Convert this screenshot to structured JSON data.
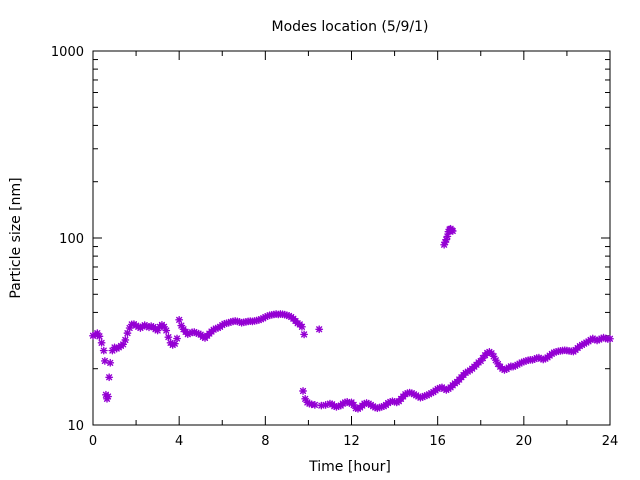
{
  "chart_data": {
    "type": "scatter",
    "title": "Modes location (5/9/1)",
    "xlabel": "Time [hour]",
    "ylabel": "Particle size [nm]",
    "xlim": [
      0,
      24
    ],
    "ylim": [
      10,
      1000
    ],
    "yscale": "log",
    "grid": false,
    "x_ticks": [
      "0",
      "4",
      "8",
      "12",
      "16",
      "20",
      "24"
    ],
    "y_ticks": [
      "10",
      "100",
      "1000"
    ],
    "marker_color": "#9400d3",
    "marker": "asterisk",
    "points": [
      [
        0.0,
        30.0
      ],
      [
        0.1,
        30.3
      ],
      [
        0.2,
        31.0
      ],
      [
        0.3,
        29.8
      ],
      [
        0.4,
        27.5
      ],
      [
        0.5,
        25.0
      ],
      [
        0.55,
        22.0
      ],
      [
        0.6,
        14.5
      ],
      [
        0.65,
        13.8
      ],
      [
        0.7,
        14.2
      ],
      [
        0.75,
        18.0
      ],
      [
        0.8,
        21.5
      ],
      [
        0.9,
        25.0
      ],
      [
        1.0,
        26.0
      ],
      [
        1.1,
        25.6
      ],
      [
        1.2,
        26.0
      ],
      [
        1.3,
        26.5
      ],
      [
        1.4,
        27.0
      ],
      [
        1.5,
        28.5
      ],
      [
        1.6,
        31.0
      ],
      [
        1.7,
        33.0
      ],
      [
        1.8,
        34.5
      ],
      [
        1.9,
        34.6
      ],
      [
        2.0,
        34.0
      ],
      [
        2.1,
        33.5
      ],
      [
        2.2,
        33.0
      ],
      [
        2.3,
        33.6
      ],
      [
        2.4,
        34.2
      ],
      [
        2.5,
        33.8
      ],
      [
        2.6,
        33.3
      ],
      [
        2.7,
        33.8
      ],
      [
        2.8,
        33.4
      ],
      [
        2.9,
        32.5
      ],
      [
        3.0,
        32.0
      ],
      [
        3.1,
        33.5
      ],
      [
        3.2,
        34.3
      ],
      [
        3.3,
        33.5
      ],
      [
        3.4,
        32.0
      ],
      [
        3.5,
        29.5
      ],
      [
        3.6,
        27.5
      ],
      [
        3.7,
        26.8
      ],
      [
        3.8,
        27.2
      ],
      [
        3.9,
        29.0
      ],
      [
        4.0,
        36.5
      ],
      [
        4.1,
        34.0
      ],
      [
        4.2,
        32.5
      ],
      [
        4.3,
        31.5
      ],
      [
        4.4,
        30.6
      ],
      [
        4.5,
        31.0
      ],
      [
        4.6,
        31.3
      ],
      [
        4.7,
        31.4
      ],
      [
        4.8,
        31.0
      ],
      [
        4.9,
        30.8
      ],
      [
        5.0,
        30.4
      ],
      [
        5.1,
        29.6
      ],
      [
        5.2,
        29.2
      ],
      [
        5.3,
        30.0
      ],
      [
        5.4,
        30.8
      ],
      [
        5.5,
        31.6
      ],
      [
        5.6,
        32.3
      ],
      [
        5.7,
        32.8
      ],
      [
        5.8,
        33.0
      ],
      [
        5.9,
        33.5
      ],
      [
        6.0,
        34.2
      ],
      [
        6.1,
        34.8
      ],
      [
        6.2,
        35.0
      ],
      [
        6.3,
        35.2
      ],
      [
        6.4,
        35.6
      ],
      [
        6.5,
        35.8
      ],
      [
        6.6,
        36.0
      ],
      [
        6.7,
        35.8
      ],
      [
        6.8,
        35.6
      ],
      [
        6.9,
        35.2
      ],
      [
        7.0,
        35.4
      ],
      [
        7.1,
        35.6
      ],
      [
        7.2,
        35.8
      ],
      [
        7.3,
        35.9
      ],
      [
        7.4,
        35.8
      ],
      [
        7.5,
        36.0
      ],
      [
        7.6,
        36.2
      ],
      [
        7.7,
        36.4
      ],
      [
        7.8,
        36.8
      ],
      [
        7.9,
        37.2
      ],
      [
        8.0,
        37.8
      ],
      [
        8.1,
        38.2
      ],
      [
        8.2,
        38.6
      ],
      [
        8.3,
        38.8
      ],
      [
        8.4,
        39.0
      ],
      [
        8.5,
        39.2
      ],
      [
        8.6,
        39.0
      ],
      [
        8.7,
        39.2
      ],
      [
        8.8,
        39.1
      ],
      [
        8.9,
        38.9
      ],
      [
        9.0,
        38.6
      ],
      [
        9.1,
        38.3
      ],
      [
        9.2,
        37.8
      ],
      [
        9.3,
        37.0
      ],
      [
        9.4,
        36.0
      ],
      [
        9.5,
        35.0
      ],
      [
        9.6,
        34.5
      ],
      [
        9.7,
        33.5
      ],
      [
        9.8,
        30.5
      ],
      [
        9.75,
        15.2
      ],
      [
        9.85,
        13.8
      ],
      [
        9.95,
        13.2
      ],
      [
        10.05,
        13.0
      ],
      [
        10.15,
        12.9
      ],
      [
        10.3,
        12.8
      ],
      [
        10.5,
        32.5
      ],
      [
        10.6,
        12.7
      ],
      [
        10.8,
        12.8
      ],
      [
        11.0,
        13.0
      ],
      [
        11.1,
        12.9
      ],
      [
        11.2,
        12.6
      ],
      [
        11.3,
        12.5
      ],
      [
        11.4,
        12.6
      ],
      [
        11.5,
        12.7
      ],
      [
        11.6,
        13.0
      ],
      [
        11.7,
        13.2
      ],
      [
        11.8,
        13.3
      ],
      [
        11.9,
        13.1
      ],
      [
        12.0,
        13.2
      ],
      [
        12.1,
        12.8
      ],
      [
        12.2,
        12.3
      ],
      [
        12.3,
        12.2
      ],
      [
        12.4,
        12.4
      ],
      [
        12.5,
        12.7
      ],
      [
        12.6,
        13.0
      ],
      [
        12.7,
        13.1
      ],
      [
        12.8,
        13.0
      ],
      [
        12.9,
        12.8
      ],
      [
        13.0,
        12.6
      ],
      [
        13.1,
        12.4
      ],
      [
        13.2,
        12.3
      ],
      [
        13.3,
        12.4
      ],
      [
        13.4,
        12.5
      ],
      [
        13.5,
        12.6
      ],
      [
        13.6,
        12.8
      ],
      [
        13.7,
        13.1
      ],
      [
        13.8,
        13.3
      ],
      [
        13.9,
        13.4
      ],
      [
        14.0,
        13.3
      ],
      [
        14.1,
        13.2
      ],
      [
        14.2,
        13.4
      ],
      [
        14.3,
        13.8
      ],
      [
        14.4,
        14.2
      ],
      [
        14.5,
        14.6
      ],
      [
        14.6,
        14.8
      ],
      [
        14.7,
        14.9
      ],
      [
        14.8,
        14.8
      ],
      [
        14.9,
        14.6
      ],
      [
        15.0,
        14.4
      ],
      [
        15.1,
        14.2
      ],
      [
        15.2,
        14.0
      ],
      [
        15.3,
        14.1
      ],
      [
        15.4,
        14.3
      ],
      [
        15.5,
        14.4
      ],
      [
        15.6,
        14.6
      ],
      [
        15.7,
        14.8
      ],
      [
        15.8,
        15.0
      ],
      [
        15.9,
        15.3
      ],
      [
        16.0,
        15.6
      ],
      [
        16.1,
        15.8
      ],
      [
        16.2,
        15.9
      ],
      [
        16.3,
        15.6
      ],
      [
        16.4,
        15.4
      ],
      [
        16.5,
        15.6
      ],
      [
        16.6,
        15.9
      ],
      [
        16.7,
        16.3
      ],
      [
        16.8,
        16.7
      ],
      [
        16.9,
        17.0
      ],
      [
        17.0,
        17.5
      ],
      [
        17.1,
        18.0
      ],
      [
        17.2,
        18.5
      ],
      [
        17.3,
        19.0
      ],
      [
        17.4,
        19.3
      ],
      [
        17.5,
        19.6
      ],
      [
        17.6,
        20.0
      ],
      [
        17.7,
        20.5
      ],
      [
        17.8,
        21.0
      ],
      [
        17.9,
        21.6
      ],
      [
        18.0,
        22.0
      ],
      [
        18.1,
        22.8
      ],
      [
        18.2,
        23.6
      ],
      [
        18.3,
        24.3
      ],
      [
        18.4,
        24.6
      ],
      [
        18.5,
        24.2
      ],
      [
        18.6,
        23.3
      ],
      [
        18.7,
        22.2
      ],
      [
        18.8,
        21.2
      ],
      [
        18.9,
        20.5
      ],
      [
        19.0,
        20.0
      ],
      [
        19.1,
        19.7
      ],
      [
        19.2,
        19.9
      ],
      [
        19.3,
        20.3
      ],
      [
        19.4,
        20.6
      ],
      [
        19.5,
        20.5
      ],
      [
        19.6,
        20.7
      ],
      [
        19.7,
        21.0
      ],
      [
        19.8,
        21.3
      ],
      [
        19.9,
        21.6
      ],
      [
        20.0,
        21.8
      ],
      [
        20.1,
        22.0
      ],
      [
        20.2,
        22.2
      ],
      [
        20.3,
        22.3
      ],
      [
        20.4,
        22.3
      ],
      [
        20.5,
        22.5
      ],
      [
        20.6,
        22.8
      ],
      [
        20.7,
        22.9
      ],
      [
        20.8,
        22.6
      ],
      [
        20.9,
        22.4
      ],
      [
        21.0,
        22.6
      ],
      [
        21.1,
        23.0
      ],
      [
        21.2,
        23.5
      ],
      [
        21.3,
        24.0
      ],
      [
        21.4,
        24.4
      ],
      [
        21.5,
        24.6
      ],
      [
        21.6,
        24.8
      ],
      [
        21.7,
        24.9
      ],
      [
        21.8,
        25.0
      ],
      [
        21.9,
        25.1
      ],
      [
        22.0,
        25.0
      ],
      [
        22.1,
        24.9
      ],
      [
        22.2,
        24.8
      ],
      [
        22.3,
        24.7
      ],
      [
        22.4,
        25.2
      ],
      [
        22.5,
        25.8
      ],
      [
        22.6,
        26.4
      ],
      [
        22.7,
        26.8
      ],
      [
        22.8,
        27.2
      ],
      [
        22.9,
        27.6
      ],
      [
        23.0,
        28.0
      ],
      [
        23.1,
        28.5
      ],
      [
        23.2,
        29.0
      ],
      [
        23.3,
        28.6
      ],
      [
        23.4,
        28.3
      ],
      [
        23.5,
        28.6
      ],
      [
        23.6,
        29.0
      ],
      [
        23.7,
        29.3
      ],
      [
        23.8,
        29.0
      ],
      [
        23.9,
        28.8
      ],
      [
        24.0,
        28.9
      ],
      [
        16.3,
        92.0
      ],
      [
        16.35,
        95.0
      ],
      [
        16.4,
        98.0
      ],
      [
        16.45,
        102.0
      ],
      [
        16.5,
        108.0
      ],
      [
        16.55,
        111.0
      ],
      [
        16.6,
        112.0
      ],
      [
        16.65,
        110.0
      ],
      [
        16.7,
        109.0
      ]
    ]
  }
}
